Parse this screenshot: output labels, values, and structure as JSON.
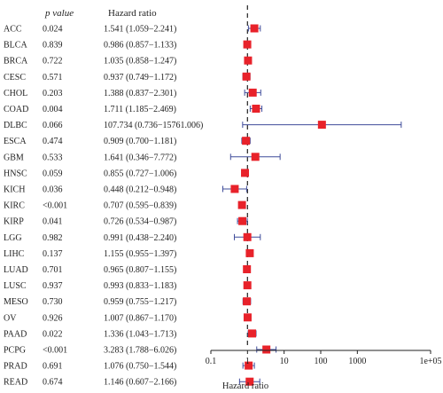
{
  "chart_data": {
    "type": "forest",
    "columns": {
      "p_value": "p value",
      "hazard_ratio": "Hazard ratio"
    },
    "xlabel": "Hazard ratio",
    "x_scale": "log",
    "xlim": [
      0.1,
      100000
    ],
    "reference_line": 1,
    "x_ticks": [
      {
        "value": 0.1,
        "label": "0.1"
      },
      {
        "value": 1,
        "label": "1"
      },
      {
        "value": 10,
        "label": "10"
      },
      {
        "value": 100,
        "label": "100"
      },
      {
        "value": 1000,
        "label": "1000"
      },
      {
        "value": 100000,
        "label": "1e+05"
      }
    ],
    "marker_color": "#e8222a",
    "ci_color": "#3f4c9a",
    "rows": [
      {
        "name": "ACC",
        "p": "0.024",
        "hr_text": "1.541 (1.059−2.241)",
        "hr": 1.541,
        "lo": 1.059,
        "hi": 2.241
      },
      {
        "name": "BLCA",
        "p": "0.839",
        "hr_text": "0.986 (0.857−1.133)",
        "hr": 0.986,
        "lo": 0.857,
        "hi": 1.133
      },
      {
        "name": "BRCA",
        "p": "0.722",
        "hr_text": "1.035 (0.858−1.247)",
        "hr": 1.035,
        "lo": 0.858,
        "hi": 1.247
      },
      {
        "name": "CESC",
        "p": "0.571",
        "hr_text": "0.937 (0.749−1.172)",
        "hr": 0.937,
        "lo": 0.749,
        "hi": 1.172
      },
      {
        "name": "CHOL",
        "p": "0.203",
        "hr_text": "1.388 (0.837−2.301)",
        "hr": 1.388,
        "lo": 0.837,
        "hi": 2.301
      },
      {
        "name": "COAD",
        "p": "0.004",
        "hr_text": "1.711 (1.185−2.469)",
        "hr": 1.711,
        "lo": 1.185,
        "hi": 2.469
      },
      {
        "name": "DLBC",
        "p": "0.066",
        "hr_text": "107.734 (0.736−15761.006)",
        "hr": 107.734,
        "lo": 0.736,
        "hi": 15761.006
      },
      {
        "name": "ESCA",
        "p": "0.474",
        "hr_text": "0.909 (0.700−1.181)",
        "hr": 0.909,
        "lo": 0.7,
        "hi": 1.181
      },
      {
        "name": "GBM",
        "p": "0.533",
        "hr_text": "1.641 (0.346−7.772)",
        "hr": 1.641,
        "lo": 0.346,
        "hi": 7.772
      },
      {
        "name": "HNSC",
        "p": "0.059",
        "hr_text": "0.855 (0.727−1.006)",
        "hr": 0.855,
        "lo": 0.727,
        "hi": 1.006
      },
      {
        "name": "KICH",
        "p": "0.036",
        "hr_text": "0.448 (0.212−0.948)",
        "hr": 0.448,
        "lo": 0.212,
        "hi": 0.948
      },
      {
        "name": "KIRC",
        "p": "<0.001",
        "hr_text": "0.707 (0.595−0.839)",
        "hr": 0.707,
        "lo": 0.595,
        "hi": 0.839
      },
      {
        "name": "KIRP",
        "p": "0.041",
        "hr_text": "0.726 (0.534−0.987)",
        "hr": 0.726,
        "lo": 0.534,
        "hi": 0.987
      },
      {
        "name": "LGG",
        "p": "0.982",
        "hr_text": "0.991 (0.438−2.240)",
        "hr": 0.991,
        "lo": 0.438,
        "hi": 2.24
      },
      {
        "name": "LIHC",
        "p": "0.137",
        "hr_text": "1.155 (0.955−1.397)",
        "hr": 1.155,
        "lo": 0.955,
        "hi": 1.397
      },
      {
        "name": "LUAD",
        "p": "0.701",
        "hr_text": "0.965 (0.807−1.155)",
        "hr": 0.965,
        "lo": 0.807,
        "hi": 1.155
      },
      {
        "name": "LUSC",
        "p": "0.937",
        "hr_text": "0.993 (0.833−1.183)",
        "hr": 0.993,
        "lo": 0.833,
        "hi": 1.183
      },
      {
        "name": "MESO",
        "p": "0.730",
        "hr_text": "0.959 (0.755−1.217)",
        "hr": 0.959,
        "lo": 0.755,
        "hi": 1.217
      },
      {
        "name": "OV",
        "p": "0.926",
        "hr_text": "1.007 (0.867−1.170)",
        "hr": 1.007,
        "lo": 0.867,
        "hi": 1.17
      },
      {
        "name": "PAAD",
        "p": "0.022",
        "hr_text": "1.336 (1.043−1.713)",
        "hr": 1.336,
        "lo": 1.043,
        "hi": 1.713
      },
      {
        "name": "PCPG",
        "p": "<0.001",
        "hr_text": "3.283 (1.788−6.026)",
        "hr": 3.283,
        "lo": 1.788,
        "hi": 6.026
      },
      {
        "name": "PRAD",
        "p": "0.691",
        "hr_text": "1.076 (0.750−1.544)",
        "hr": 1.076,
        "lo": 0.75,
        "hi": 1.544
      },
      {
        "name": "READ",
        "p": "0.674",
        "hr_text": "1.146 (0.607−2.166)",
        "hr": 1.146,
        "lo": 0.607,
        "hi": 2.166
      }
    ]
  }
}
